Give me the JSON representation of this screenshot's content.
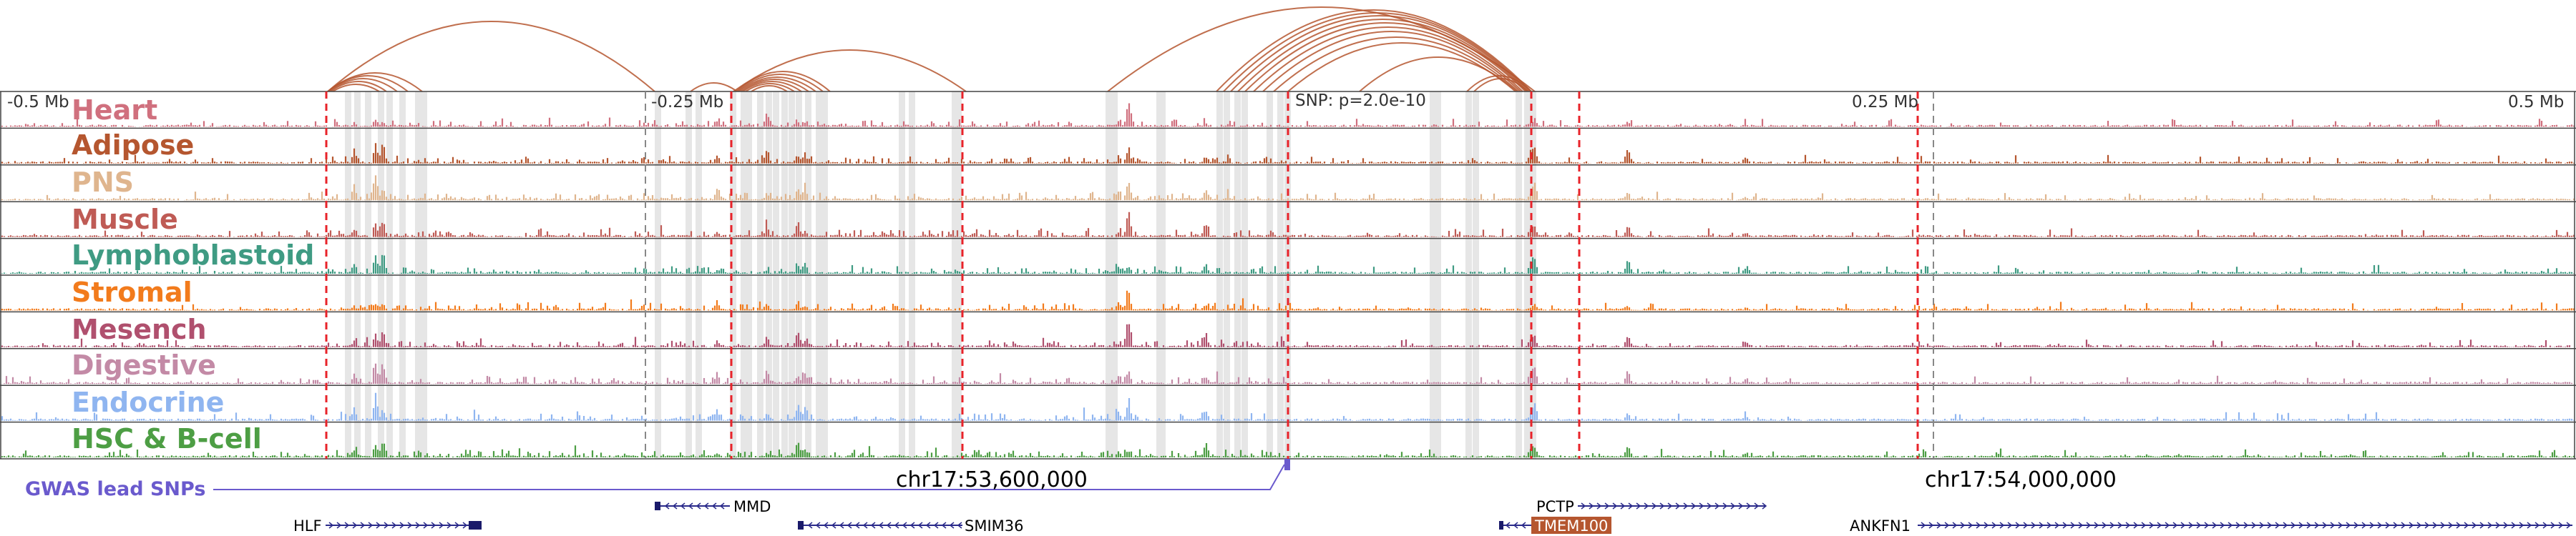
{
  "scale": {
    "left_label": "-0.5 Mb",
    "mid_left_label": "-0.25 Mb",
    "center_label": "SNP: p=2.0e-10",
    "mid_right_label": "0.25 Mb",
    "right_label": "0.5 Mb"
  },
  "tracks": [
    {
      "name": "Heart",
      "color": "#d0707e"
    },
    {
      "name": "Adipose",
      "color": "#b5562f"
    },
    {
      "name": "PNS",
      "color": "#dfb58e"
    },
    {
      "name": "Muscle",
      "color": "#bf5b55"
    },
    {
      "name": "Lymphoblastoid",
      "color": "#3f9b83"
    },
    {
      "name": "Stromal",
      "color": "#f27b1c"
    },
    {
      "name": "Mesench",
      "color": "#b0506e"
    },
    {
      "name": "Digestive",
      "color": "#c38aa6"
    },
    {
      "name": "Endocrine",
      "color": "#8fb5f0"
    },
    {
      "name": "HSC & B-cell",
      "color": "#4d9e44"
    }
  ],
  "gwas": {
    "label": "GWAS lead SNPs",
    "color": "#6a5acd"
  },
  "coordinates": {
    "left": "chr17:53,600,000",
    "right": "chr17:54,000,000"
  },
  "genes": {
    "hlf": "HLF",
    "mmd": "MMD",
    "smim36": "SMIM36",
    "pctp": "PCTP",
    "tmem100": "TMEM100",
    "ankfn1": "ANKFN1"
  },
  "colors": {
    "loop": "#b5562f",
    "highlight": "#e6e6e6",
    "snp_line": "#e8232a",
    "gene": "#2a2a8a",
    "tmem100_box": "#b5562f"
  }
}
